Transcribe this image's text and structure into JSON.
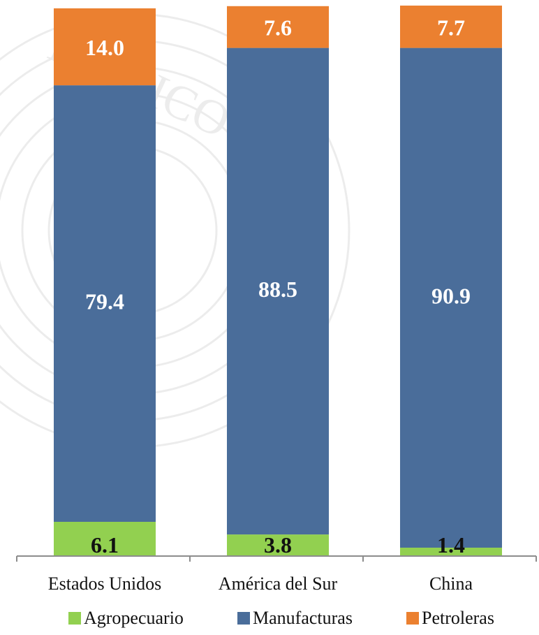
{
  "chart_data": {
    "type": "bar",
    "stacked": true,
    "categories": [
      "Estados Unidos",
      "América del Sur",
      "China"
    ],
    "series": [
      {
        "name": "Agropecuario",
        "values": [
          6.1,
          3.8,
          1.4
        ],
        "color": "#92d050",
        "label_color": "#111111"
      },
      {
        "name": "Manufacturas",
        "values": [
          79.4,
          88.5,
          90.9
        ],
        "color": "#4a6d9a",
        "label_color": "#ffffff"
      },
      {
        "name": "Petroleras",
        "values": [
          14.0,
          7.6,
          7.7
        ],
        "color": "#eb8030",
        "label_color": "#ffffff"
      }
    ],
    "ylim": [
      0,
      100
    ],
    "grid": false,
    "legend_position": "bottom",
    "title": "",
    "xlabel": "",
    "ylabel": ""
  },
  "watermark": "MEXICO"
}
